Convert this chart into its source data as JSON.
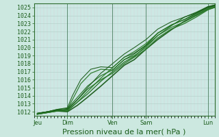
{
  "xlabel": "Pression niveau de la mer( hPa )",
  "ylim": [
    1011.5,
    1025.5
  ],
  "xlim": [
    0,
    108
  ],
  "yticks": [
    1012,
    1013,
    1014,
    1015,
    1016,
    1017,
    1018,
    1019,
    1020,
    1021,
    1022,
    1023,
    1024,
    1025
  ],
  "xtick_positions": [
    2,
    20,
    47,
    67,
    104
  ],
  "xtick_labels": [
    "Jeu",
    "Dim",
    "Ven",
    "Sam",
    "Lun"
  ],
  "vline_positions": [
    20,
    47,
    67,
    104
  ],
  "bg_color": "#cce8e0",
  "plot_bg_color": "#cce8e4",
  "grid_major_color": "#aac8c0",
  "grid_minor_h_color": "#bbddd8",
  "grid_minor_v_color": "#ddc8cc",
  "line_colors": [
    "#1a5c1a",
    "#1a6b1a",
    "#2a7a2a",
    "#1a5c1a",
    "#2a7a2a",
    "#1a6b1a",
    "#2a7a2a",
    "#1a5c1a"
  ],
  "line_widths": [
    1.2,
    0.9,
    0.9,
    0.8,
    1.0,
    0.8,
    0.9,
    0.8
  ],
  "tick_color": "#1a5c1a",
  "axis_color": "#2d6b2d",
  "xlabel_color": "#1a5c1a",
  "vline_color": "#4a7a5a",
  "fontsize_tick": 6.0,
  "fontsize_xlabel": 8.0,
  "lines": [
    {
      "x": [
        2,
        8,
        14,
        20,
        26,
        32,
        40,
        47,
        54,
        60,
        67,
        74,
        82,
        90,
        97,
        104,
        108
      ],
      "y": [
        1011.7,
        1011.9,
        1012.1,
        1012.0,
        1012.8,
        1013.8,
        1015.2,
        1016.5,
        1017.8,
        1018.5,
        1019.8,
        1021.0,
        1022.2,
        1023.3,
        1024.0,
        1024.8,
        1025.0
      ]
    },
    {
      "x": [
        2,
        8,
        14,
        20,
        26,
        32,
        40,
        47,
        54,
        60,
        67,
        74,
        82,
        90,
        97,
        104,
        108
      ],
      "y": [
        1011.8,
        1012.0,
        1012.2,
        1012.1,
        1013.2,
        1014.2,
        1015.8,
        1017.0,
        1018.2,
        1018.9,
        1020.2,
        1021.5,
        1022.7,
        1023.8,
        1024.4,
        1025.1,
        1025.3
      ]
    },
    {
      "x": [
        2,
        8,
        14,
        20,
        23,
        28,
        34,
        40,
        47,
        54,
        60,
        67,
        74,
        82,
        90,
        97,
        104,
        108
      ],
      "y": [
        1011.7,
        1011.9,
        1012.1,
        1012.3,
        1013.5,
        1015.5,
        1016.8,
        1017.3,
        1017.2,
        1018.5,
        1019.0,
        1020.0,
        1021.5,
        1022.5,
        1023.2,
        1024.0,
        1024.8,
        1025.1
      ]
    },
    {
      "x": [
        2,
        8,
        14,
        20,
        23,
        28,
        34,
        40,
        47,
        54,
        60,
        67,
        74,
        82,
        90,
        97,
        104,
        108
      ],
      "y": [
        1011.8,
        1012.0,
        1012.3,
        1012.5,
        1014.0,
        1016.0,
        1017.3,
        1017.6,
        1017.5,
        1018.8,
        1019.3,
        1020.3,
        1021.8,
        1022.8,
        1023.5,
        1024.3,
        1025.1,
        1025.3
      ]
    },
    {
      "x": [
        2,
        8,
        14,
        20,
        26,
        32,
        40,
        47,
        54,
        60,
        67,
        74,
        82,
        90,
        97,
        104,
        108
      ],
      "y": [
        1011.7,
        1011.9,
        1012.2,
        1012.2,
        1013.5,
        1014.8,
        1016.0,
        1016.8,
        1018.0,
        1018.8,
        1019.8,
        1021.2,
        1022.3,
        1023.0,
        1023.8,
        1024.7,
        1025.0
      ]
    },
    {
      "x": [
        2,
        8,
        14,
        20,
        26,
        32,
        40,
        47,
        54,
        60,
        67,
        74,
        82,
        90,
        97,
        104,
        108
      ],
      "y": [
        1011.8,
        1012.0,
        1012.3,
        1012.4,
        1013.8,
        1015.2,
        1016.5,
        1017.2,
        1018.5,
        1019.2,
        1020.3,
        1021.8,
        1022.8,
        1023.5,
        1024.2,
        1025.0,
        1025.2
      ]
    },
    {
      "x": [
        2,
        8,
        14,
        20,
        26,
        32,
        40,
        47,
        54,
        60,
        67,
        74,
        82,
        90,
        97,
        104,
        108
      ],
      "y": [
        1011.7,
        1011.9,
        1012.1,
        1012.1,
        1013.2,
        1014.5,
        1016.2,
        1017.5,
        1018.8,
        1019.5,
        1020.5,
        1021.8,
        1022.8,
        1023.5,
        1024.1,
        1024.9,
        1025.2
      ]
    },
    {
      "x": [
        2,
        8,
        14,
        20,
        26,
        32,
        40,
        47,
        54,
        60,
        67,
        74,
        82,
        90,
        97,
        104,
        108
      ],
      "y": [
        1011.8,
        1012.0,
        1012.2,
        1012.3,
        1013.5,
        1015.0,
        1016.8,
        1018.0,
        1019.2,
        1020.0,
        1021.0,
        1022.3,
        1023.2,
        1023.8,
        1024.3,
        1025.0,
        1025.2
      ]
    }
  ]
}
